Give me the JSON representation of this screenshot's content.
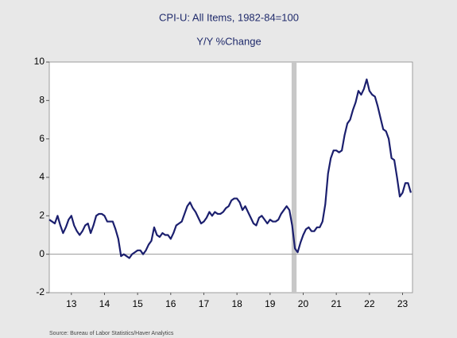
{
  "chart_data": {
    "type": "line",
    "title": "CPI-U: All Items, 1982-84=100",
    "subtitle": "Y/Y %Change",
    "source": "Source:  Bureau of Labor Statistics/Haver Analytics",
    "color": "#1b1f6e",
    "shading": [
      2020.15,
      2020.3
    ],
    "x": [
      2012.833,
      2012.917,
      2013.0,
      2013.083,
      2013.167,
      2013.25,
      2013.333,
      2013.417,
      2013.5,
      2013.583,
      2013.667,
      2013.75,
      2013.833,
      2013.917,
      2014.0,
      2014.083,
      2014.167,
      2014.25,
      2014.333,
      2014.417,
      2014.5,
      2014.583,
      2014.667,
      2014.75,
      2014.833,
      2014.917,
      2015.0,
      2015.083,
      2015.167,
      2015.25,
      2015.333,
      2015.417,
      2015.5,
      2015.583,
      2015.667,
      2015.75,
      2015.833,
      2015.917,
      2016.0,
      2016.083,
      2016.167,
      2016.25,
      2016.333,
      2016.417,
      2016.5,
      2016.583,
      2016.667,
      2016.75,
      2016.833,
      2016.917,
      2017.0,
      2017.083,
      2017.167,
      2017.25,
      2017.333,
      2017.417,
      2017.5,
      2017.583,
      2017.667,
      2017.75,
      2017.833,
      2017.917,
      2018.0,
      2018.083,
      2018.167,
      2018.25,
      2018.333,
      2018.417,
      2018.5,
      2018.583,
      2018.667,
      2018.75,
      2018.833,
      2018.917,
      2019.0,
      2019.083,
      2019.167,
      2019.25,
      2019.333,
      2019.417,
      2019.5,
      2019.583,
      2019.667,
      2019.75,
      2019.833,
      2019.917,
      2020.0,
      2020.083,
      2020.167,
      2020.25,
      2020.333,
      2020.417,
      2020.5,
      2020.583,
      2020.667,
      2020.75,
      2020.833,
      2020.917,
      2021.0,
      2021.083,
      2021.167,
      2021.25,
      2021.333,
      2021.417,
      2021.5,
      2021.583,
      2021.667,
      2021.75,
      2021.833,
      2021.917,
      2022.0,
      2022.083,
      2022.167,
      2022.25,
      2022.333,
      2022.417,
      2022.5,
      2022.583,
      2022.667,
      2022.75,
      2022.833,
      2022.917,
      2023.0,
      2023.083,
      2023.167,
      2023.25,
      2023.333,
      2023.417,
      2023.5,
      2023.583,
      2023.667,
      2023.75
    ],
    "values": [
      1.8,
      1.7,
      1.6,
      2.0,
      1.5,
      1.1,
      1.4,
      1.8,
      2.0,
      1.5,
      1.2,
      1.0,
      1.2,
      1.5,
      1.6,
      1.1,
      1.5,
      2.0,
      2.1,
      2.1,
      2.0,
      1.7,
      1.7,
      1.7,
      1.3,
      0.8,
      -0.1,
      0.0,
      -0.1,
      -0.2,
      0.0,
      0.1,
      0.2,
      0.2,
      0.0,
      0.2,
      0.5,
      0.7,
      1.4,
      1.0,
      0.9,
      1.1,
      1.0,
      1.0,
      0.8,
      1.1,
      1.5,
      1.6,
      1.7,
      2.1,
      2.5,
      2.7,
      2.4,
      2.2,
      1.9,
      1.6,
      1.7,
      1.9,
      2.2,
      2.0,
      2.2,
      2.1,
      2.1,
      2.2,
      2.4,
      2.5,
      2.8,
      2.9,
      2.9,
      2.7,
      2.3,
      2.5,
      2.2,
      1.9,
      1.6,
      1.5,
      1.9,
      2.0,
      1.8,
      1.6,
      1.8,
      1.7,
      1.7,
      1.8,
      2.1,
      2.3,
      2.5,
      2.3,
      1.5,
      0.3,
      0.1,
      0.6,
      1.0,
      1.3,
      1.4,
      1.2,
      1.2,
      1.4,
      1.4,
      1.7,
      2.6,
      4.2,
      5.0,
      5.4,
      5.4,
      5.3,
      5.4,
      6.2,
      6.8,
      7.0,
      7.5,
      7.9,
      8.5,
      8.3,
      8.6,
      9.1,
      8.5,
      8.3,
      8.2,
      7.7,
      7.1,
      6.5,
      6.4,
      6.0,
      5.0,
      4.9,
      4.0,
      3.0,
      3.2,
      3.7,
      3.7,
      3.2
    ],
    "xlim": [
      2012.833,
      2023.8
    ],
    "xticks": [
      {
        "value": 2013.5,
        "label": "13"
      },
      {
        "value": 2014.5,
        "label": "14"
      },
      {
        "value": 2015.5,
        "label": "15"
      },
      {
        "value": 2016.5,
        "label": "16"
      },
      {
        "value": 2017.5,
        "label": "17"
      },
      {
        "value": 2018.5,
        "label": "18"
      },
      {
        "value": 2019.5,
        "label": "19"
      },
      {
        "value": 2020.5,
        "label": "20"
      },
      {
        "value": 2021.5,
        "label": "21"
      },
      {
        "value": 2022.5,
        "label": "22"
      },
      {
        "value": 2023.5,
        "label": "23"
      }
    ],
    "ylim": [
      -2,
      10
    ],
    "yticks": [
      -2,
      0,
      2,
      4,
      6,
      8,
      10
    ],
    "zero_line": true
  }
}
